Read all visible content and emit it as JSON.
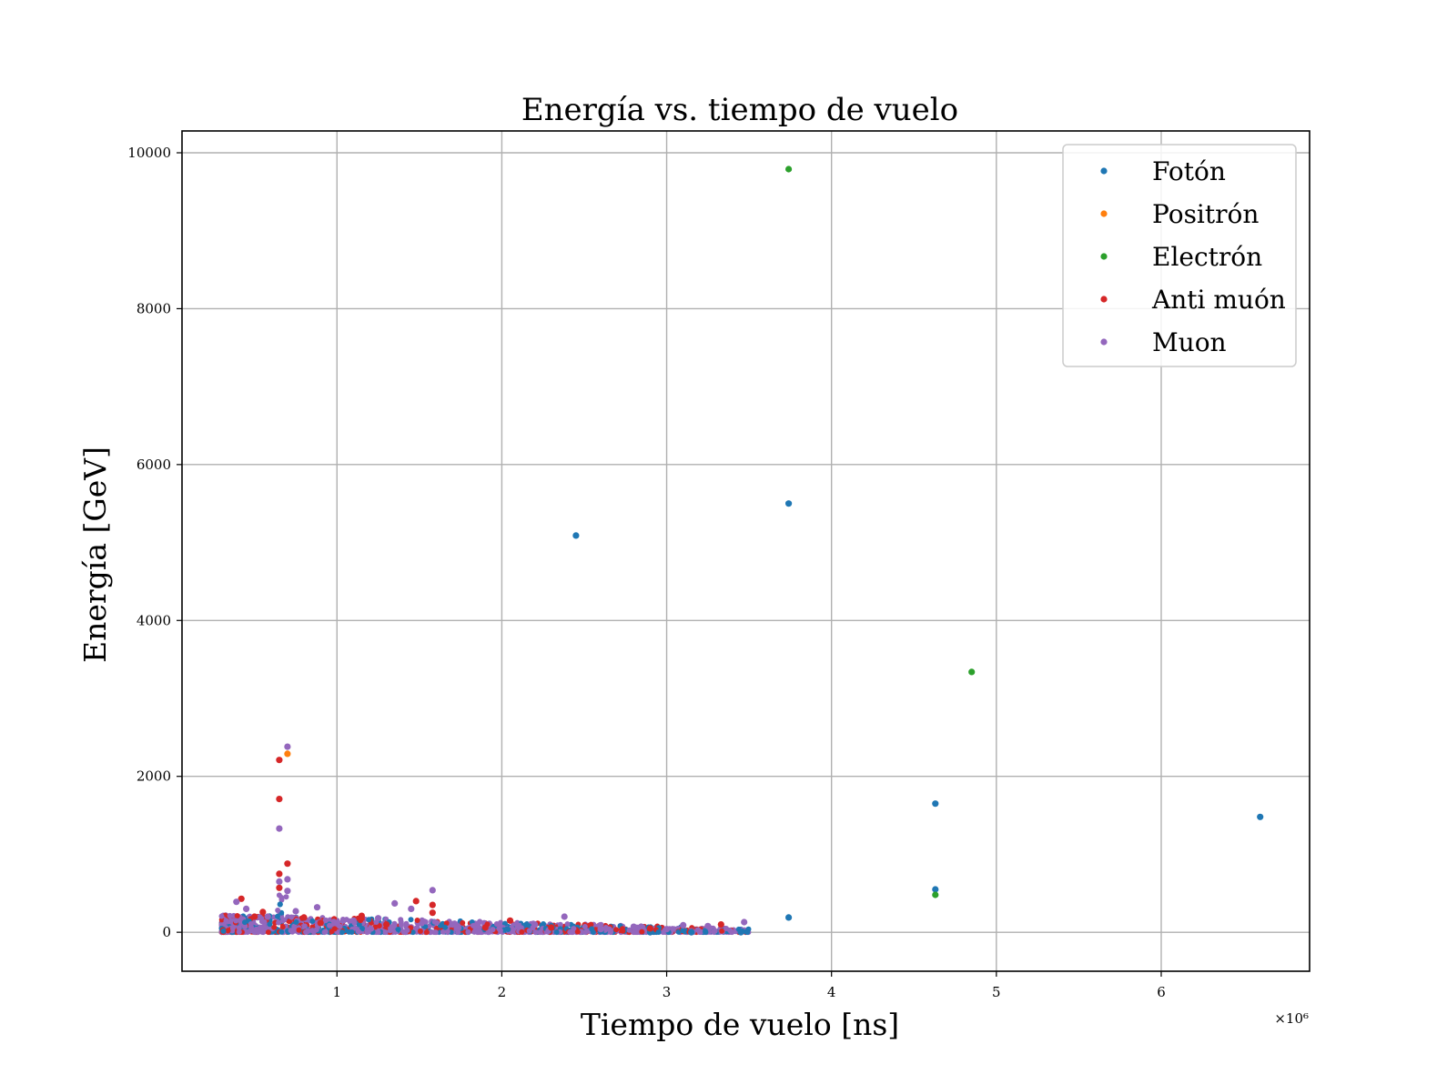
{
  "chart_data": {
    "type": "scatter",
    "title": "Energía vs. tiempo de vuelo",
    "xlabel": "Tiempo de vuelo [ns]",
    "ylabel": "Energía [GeV]",
    "x_offset_label": "×10⁶",
    "x_scale": 1000000,
    "xlim": [
      0.06,
      6.9
    ],
    "ylim": [
      -500,
      10280
    ],
    "xticks": [
      1,
      2,
      3,
      4,
      5,
      6
    ],
    "yticks": [
      0,
      2000,
      4000,
      6000,
      8000,
      10000
    ],
    "grid": true,
    "legend_position": "top-right",
    "series": [
      {
        "name": "Fotón",
        "color": "#1f77b4",
        "points": [
          [
            2.45,
            5090
          ],
          [
            3.74,
            5500
          ],
          [
            4.63,
            1650
          ],
          [
            4.63,
            550
          ],
          [
            6.6,
            1480
          ],
          [
            3.74,
            190
          ],
          [
            3.45,
            0
          ],
          [
            2.9,
            0
          ],
          [
            3.15,
            0
          ],
          [
            2.6,
            10
          ]
        ]
      },
      {
        "name": "Positrón",
        "color": "#ff7f0e",
        "points": [
          [
            0.7,
            2290
          ]
        ]
      },
      {
        "name": "Electrón",
        "color": "#2ca02c",
        "points": [
          [
            3.74,
            9790
          ],
          [
            4.85,
            3340
          ],
          [
            4.63,
            480
          ]
        ]
      },
      {
        "name": "Anti muón",
        "color": "#d62728",
        "points": [
          [
            0.65,
            2210
          ],
          [
            0.65,
            1710
          ],
          [
            0.65,
            750
          ],
          [
            0.7,
            880
          ],
          [
            0.65,
            570
          ],
          [
            0.42,
            430
          ],
          [
            1.48,
            400
          ],
          [
            1.58,
            350
          ],
          [
            1.58,
            250
          ],
          [
            2.05,
            150
          ],
          [
            3.33,
            100
          ],
          [
            0.55,
            260
          ],
          [
            1.15,
            210
          ],
          [
            0.8,
            190
          ],
          [
            2.9,
            50
          ],
          [
            1.9,
            60
          ],
          [
            0.9,
            120
          ],
          [
            1.3,
            100
          ],
          [
            2.3,
            60
          ],
          [
            0.5,
            200
          ]
        ]
      },
      {
        "name": "Muon",
        "color": "#9467bd",
        "points": [
          [
            0.7,
            2380
          ],
          [
            0.65,
            1330
          ],
          [
            0.7,
            680
          ],
          [
            0.65,
            650
          ],
          [
            1.58,
            540
          ],
          [
            0.7,
            530
          ],
          [
            0.39,
            390
          ],
          [
            0.88,
            320
          ],
          [
            1.35,
            370
          ],
          [
            2.38,
            200
          ],
          [
            3.47,
            130
          ],
          [
            3.1,
            90
          ],
          [
            0.75,
            270
          ],
          [
            1.45,
            300
          ],
          [
            1.25,
            180
          ],
          [
            0.58,
            200
          ],
          [
            1.1,
            150
          ],
          [
            2.2,
            100
          ],
          [
            2.8,
            70
          ],
          [
            3.25,
            80
          ],
          [
            0.45,
            300
          ],
          [
            1.7,
            100
          ],
          [
            1.0,
            120
          ],
          [
            2.6,
            40
          ],
          [
            3.0,
            40
          ]
        ]
      }
    ],
    "dense_cluster": {
      "x_start": 0.3,
      "x_end": 3.5,
      "max_energy_at_start": 230,
      "spike_x": 0.67,
      "spike_energy": 480
    }
  }
}
